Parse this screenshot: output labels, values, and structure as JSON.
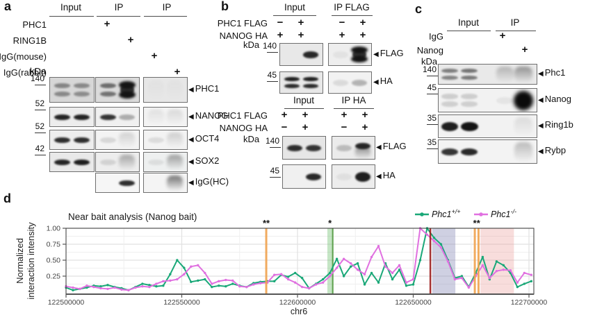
{
  "panels": {
    "a": {
      "letter": "a",
      "group_headers": [
        "Input",
        "IP",
        "IP"
      ],
      "factor_rows": [
        {
          "label": "PHC1",
          "symbols": [
            "+",
            "",
            "",
            ""
          ]
        },
        {
          "label": "RING1B",
          "symbols": [
            "",
            "+",
            "",
            ""
          ]
        },
        {
          "label": "IgG(mouse)",
          "symbols": [
            "",
            "",
            "+",
            ""
          ]
        },
        {
          "label": "IgG(rabbit)",
          "symbols": [
            "",
            "",
            "",
            "+"
          ]
        }
      ],
      "kda_unit": "kDa",
      "blot_rows": [
        {
          "kda": "140",
          "label": "PHC1",
          "boxes": [
            {
              "lanes": [
                [
                  0.42,
                  "d"
                ],
                [
                  0.4,
                  "d"
                ]
              ]
            },
            {
              "lanes": [
                [
                  0.55,
                  "d"
                ],
                [
                  1,
                  "t"
                ]
              ]
            },
            {
              "lanes": [
                [
                  0.03,
                  "m"
                ],
                [
                  0.03,
                  "m"
                ]
              ]
            }
          ]
        },
        {
          "kda": "52",
          "label": "NANOG",
          "boxes": [
            {
              "lanes": [
                [
                  0.92,
                  "b"
                ],
                [
                  0.92,
                  "b"
                ]
              ]
            },
            {
              "lanes": [
                [
                  0.85,
                  "b"
                ],
                [
                  0.3,
                  "b"
                ]
              ]
            },
            {
              "lanes": [
                [
                  0.1,
                  "m"
                ],
                [
                  0.14,
                  "m"
                ]
              ]
            }
          ]
        },
        {
          "kda": "52",
          "label": "OCT4",
          "boxes": [
            {
              "lanes": [
                [
                  0.88,
                  "b"
                ],
                [
                  0.88,
                  "b"
                ]
              ]
            },
            {
              "lanes": [
                [
                  0.12,
                  "b"
                ],
                [
                  0.18,
                  "m"
                ]
              ]
            },
            {
              "lanes": [
                [
                  0.1,
                  "b"
                ],
                [
                  0.2,
                  "m"
                ]
              ]
            }
          ]
        },
        {
          "kda": "42",
          "label": "SOX2",
          "boxes": [
            {
              "lanes": [
                [
                  0.92,
                  "b"
                ],
                [
                  0.95,
                  "b"
                ]
              ]
            },
            {
              "lanes": [
                [
                  0.12,
                  "b"
                ],
                [
                  0.4,
                  "m"
                ]
              ]
            },
            {
              "lanes": [
                [
                  0.08,
                  "b"
                ],
                [
                  0.45,
                  "m"
                ]
              ]
            }
          ]
        },
        {
          "kda": "",
          "label": "IgG(HC)",
          "boxes": [
            null,
            {
              "lanes": [
                [
                  0,
                  "n"
                ],
                [
                  0.88,
                  "b"
                ]
              ]
            },
            {
              "lanes": [
                [
                  0,
                  "n"
                ],
                [
                  0.7,
                  "m"
                ]
              ]
            }
          ]
        }
      ]
    },
    "b": {
      "letter": "b",
      "sections": [
        {
          "group_headers": [
            "Input",
            "IP FLAG"
          ],
          "factor_rows": [
            {
              "label": "PHC1 FLAG",
              "symbols": [
                "−",
                "+",
                "−",
                "+"
              ]
            },
            {
              "label": "NANOG HA",
              "symbols": [
                "+",
                "+",
                "+",
                "+"
              ]
            }
          ],
          "kda_unit": "kDa",
          "blot_rows": [
            {
              "kda": "140",
              "label": "FLAG",
              "boxes": [
                {
                  "lanes": [
                    [
                      0,
                      "n"
                    ],
                    [
                      0.9,
                      "b"
                    ]
                  ]
                },
                {
                  "lanes": [
                    [
                      0.05,
                      "b"
                    ],
                    [
                      1,
                      "t"
                    ]
                  ]
                }
              ]
            },
            {
              "kda": "45",
              "label": "HA",
              "boxes": [
                {
                  "lanes": [
                    [
                      0.95,
                      "d"
                    ],
                    [
                      0.95,
                      "d"
                    ]
                  ]
                },
                {
                  "lanes": [
                    [
                      0.1,
                      "b"
                    ],
                    [
                      0.28,
                      "b"
                    ]
                  ]
                }
              ]
            }
          ]
        },
        {
          "group_headers": [
            "Input",
            "IP HA"
          ],
          "factor_rows": [
            {
              "label": "PHC1 FLAG",
              "symbols": [
                "+",
                "+",
                "+",
                "+"
              ]
            },
            {
              "label": "NANOG HA",
              "symbols": [
                "−",
                "+",
                "−",
                "+"
              ]
            }
          ],
          "kda_unit": "kDa",
          "blot_rows": [
            {
              "kda": "140",
              "label": "FLAG",
              "boxes": [
                {
                  "lanes": [
                    [
                      0.88,
                      "b"
                    ],
                    [
                      0.85,
                      "b"
                    ]
                  ]
                },
                {
                  "lanes": [
                    [
                      0.22,
                      "b"
                    ],
                    [
                      0.9,
                      "x"
                    ]
                  ]
                }
              ]
            },
            {
              "kda": "45",
              "label": "HA",
              "boxes": [
                {
                  "lanes": [
                    [
                      0,
                      "n"
                    ],
                    [
                      0.9,
                      "b"
                    ]
                  ]
                },
                {
                  "lanes": [
                    [
                      0.06,
                      "b"
                    ],
                    [
                      0.95,
                      "B"
                    ]
                  ]
                }
              ]
            }
          ]
        }
      ]
    },
    "c": {
      "letter": "c",
      "group_headers": [
        "Input",
        "IP"
      ],
      "factor_rows": [
        {
          "label": "IgG",
          "symbols": [
            "+",
            ""
          ]
        },
        {
          "label": "Nanog",
          "symbols": [
            "",
            "+"
          ]
        }
      ],
      "kda_unit": "kDa",
      "blot_rows": [
        {
          "kda": "140",
          "label": "Phc1",
          "boxes": [
            {
              "lanes": [
                [
                  0.5,
                  "d"
                ],
                [
                  0.55,
                  "d"
                ],
                [
                  0.3,
                  "m"
                ],
                [
                  0.5,
                  "m"
                ]
              ]
            }
          ]
        },
        {
          "kda": "45",
          "label": "Nanog",
          "boxes": [
            {
              "lanes": [
                [
                  0.16,
                  "d"
                ],
                [
                  0.16,
                  "d"
                ],
                [
                  0.06,
                  "b"
                ],
                [
                  1,
                  "g"
                ]
              ]
            }
          ]
        },
        {
          "kda": "35",
          "label": "Ring1b",
          "boxes": [
            {
              "lanes": [
                [
                  0.95,
                  "B"
                ],
                [
                  1,
                  "B"
                ],
                [
                  0,
                  "n"
                ],
                [
                  0.12,
                  "m"
                ]
              ]
            }
          ]
        },
        {
          "kda": "35",
          "label": "Rybp",
          "boxes": [
            {
              "lanes": [
                [
                  0.85,
                  "b"
                ],
                [
                  0.9,
                  "b"
                ],
                [
                  0,
                  "n"
                ],
                [
                  0.3,
                  "m"
                ]
              ]
            }
          ]
        }
      ]
    },
    "d": {
      "letter": "d"
    }
  },
  "chart_data": {
    "type": "line",
    "title": "Near bait analysis (Nanog bait)",
    "xlabel": "chr6",
    "ylabel_line1": "Normalized",
    "ylabel_line2": "interaction intensity",
    "x_ticks": [
      122500000,
      122550000,
      122600000,
      122650000,
      122700000
    ],
    "y_ticks": [
      0.25,
      0.5,
      0.75,
      1.0
    ],
    "xlim": [
      122500000,
      122702000
    ],
    "ylim": [
      0,
      1.05
    ],
    "grid": true,
    "legend_position": "top-right",
    "x_start": 122500000,
    "x_step": 3000,
    "series": [
      {
        "name": "Phc1+/+",
        "name_base": "Phc1",
        "name_sup": "+/+",
        "color": "#1aa878",
        "values": [
          0.07,
          0.03,
          0.05,
          0.07,
          0.1,
          0.09,
          0.11,
          0.08,
          0.06,
          0.03,
          0.08,
          0.13,
          0.11,
          0.09,
          0.1,
          0.28,
          0.5,
          0.38,
          0.16,
          0.18,
          0.2,
          0.08,
          0.1,
          0.09,
          0.13,
          0.1,
          0.08,
          0.14,
          0.16,
          0.17,
          0.17,
          0.27,
          0.24,
          0.3,
          0.22,
          0.06,
          0.13,
          0.2,
          0.3,
          0.52,
          0.25,
          0.4,
          0.45,
          0.12,
          0.3,
          0.15,
          0.45,
          0.2,
          0.35,
          0.1,
          0.12,
          0.5,
          1.0,
          0.85,
          0.75,
          0.5,
          0.22,
          0.25,
          0.08,
          0.3,
          0.55,
          0.2,
          0.48,
          0.42,
          0.3,
          0.08,
          0.13,
          0.17
        ]
      },
      {
        "name": "Phc1-/-",
        "name_base": "Phc1",
        "name_sup": "-/-",
        "color": "#e070e0",
        "values": [
          0.09,
          0.07,
          0.05,
          0.1,
          0.08,
          0.06,
          0.05,
          0.07,
          0.04,
          0.03,
          0.07,
          0.09,
          0.08,
          0.13,
          0.17,
          0.18,
          0.2,
          0.28,
          0.4,
          0.42,
          0.3,
          0.13,
          0.17,
          0.19,
          0.18,
          0.09,
          0.08,
          0.12,
          0.14,
          0.15,
          0.27,
          0.28,
          0.2,
          0.15,
          0.08,
          0.06,
          0.12,
          0.15,
          0.25,
          0.38,
          0.52,
          0.45,
          0.35,
          0.28,
          0.55,
          0.72,
          0.4,
          0.3,
          0.42,
          0.15,
          0.2,
          1.0,
          0.9,
          0.8,
          0.7,
          0.48,
          0.2,
          0.22,
          0.07,
          0.25,
          0.42,
          0.22,
          0.33,
          0.35,
          0.34,
          0.15,
          0.3,
          0.27
        ]
      }
    ],
    "annotations": {
      "vlines": [
        {
          "x": 122586500,
          "color": "#f0a24e",
          "width": 3
        },
        {
          "x": 122657400,
          "color": "#9b1c1c",
          "width": 2.5
        },
        {
          "x": 122676600,
          "color": "#f0a24e",
          "width": 3
        },
        {
          "x": 122678200,
          "color": "#f0a24e",
          "width": 3
        }
      ],
      "vbands": [
        {
          "x0": 122612900,
          "x1": 122615600,
          "color": "rgba(110,190,110,0.40)",
          "edge_x": 122615200,
          "edge_color": "rgba(80,150,60,0.85)"
        },
        {
          "x0": 122658200,
          "x1": 122668200,
          "color": "rgba(130,132,180,0.38)"
        },
        {
          "x0": 122679000,
          "x1": 122693500,
          "color": "rgba(232,150,145,0.32)"
        }
      ],
      "sig_markers": [
        {
          "x": 122586500,
          "text": "**"
        },
        {
          "x": 122614000,
          "text": "*"
        },
        {
          "x": 122677400,
          "text": "**"
        }
      ]
    }
  }
}
